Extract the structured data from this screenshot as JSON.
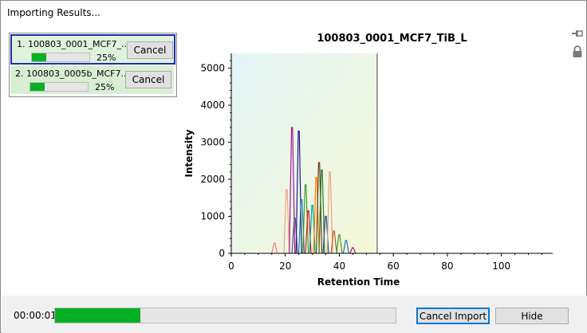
{
  "window": {
    "title": "Importing Results..."
  },
  "imports": [
    {
      "label": "1. 100803_0001_MCF7_...",
      "progress": 0.25,
      "percent": "25%",
      "cancel_label": "Cancel",
      "selected": true
    },
    {
      "label": "2. 100803_0005b_MCF7...",
      "progress": 0.25,
      "percent": "25%",
      "cancel_label": "Cancel",
      "selected": false
    }
  ],
  "chart_data": {
    "type": "line",
    "title": "100803_0001_MCF7_TiB_L",
    "xlabel": "Retention Time",
    "ylabel": "Intensity",
    "xlim": [
      0,
      119
    ],
    "ylim": [
      0,
      5400
    ],
    "xticks": [
      0,
      20,
      40,
      60,
      80,
      100
    ],
    "yticks": [
      0,
      1000,
      2000,
      3000,
      4000,
      5000
    ],
    "current_time_marker": 54,
    "peaks": [
      {
        "x": 16,
        "y": 280,
        "color": "#f08080"
      },
      {
        "x": 20.5,
        "y": 1720,
        "color": "#f4a080"
      },
      {
        "x": 22.5,
        "y": 3400,
        "color": "#a01890"
      },
      {
        "x": 23.5,
        "y": 950,
        "color": "#6a3d9a"
      },
      {
        "x": 25,
        "y": 3300,
        "color": "#1a1a8c"
      },
      {
        "x": 26,
        "y": 1450,
        "color": "#1f78b4"
      },
      {
        "x": 27.5,
        "y": 1850,
        "color": "#33a02c"
      },
      {
        "x": 28.5,
        "y": 1150,
        "color": "#e31a1c"
      },
      {
        "x": 30,
        "y": 1300,
        "color": "#00a0a0"
      },
      {
        "x": 31.5,
        "y": 2050,
        "color": "#ff7f00"
      },
      {
        "x": 32.5,
        "y": 2450,
        "color": "#6b3a1e"
      },
      {
        "x": 33.5,
        "y": 2250,
        "color": "#2a7a2a"
      },
      {
        "x": 35,
        "y": 1000,
        "color": "#1f4fa0"
      },
      {
        "x": 36.5,
        "y": 2200,
        "color": "#f0a080"
      },
      {
        "x": 38,
        "y": 600,
        "color": "#b15928"
      },
      {
        "x": 40,
        "y": 500,
        "color": "#33a02c"
      },
      {
        "x": 42.5,
        "y": 350,
        "color": "#1f78b4"
      },
      {
        "x": 45,
        "y": 150,
        "color": "#a01890"
      }
    ]
  },
  "toolbar_icons": [
    "pin-icon",
    "lock-icon"
  ],
  "status": {
    "elapsed": "00:00:01",
    "progress": 0.25
  },
  "buttons": {
    "cancel_import": "Cancel Import",
    "hide": "Hide"
  }
}
